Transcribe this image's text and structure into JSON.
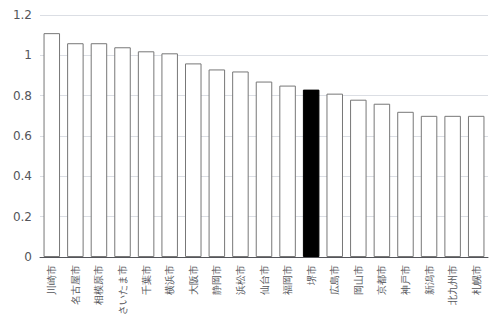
{
  "chart_data": {
    "type": "bar",
    "categories": [
      "川崎市",
      "名古屋市",
      "相模原市",
      "さいたま市",
      "千葉市",
      "横浜市",
      "大阪市",
      "静岡市",
      "浜松市",
      "仙台市",
      "福岡市",
      "堺市",
      "広島市",
      "岡山市",
      "京都市",
      "神戸市",
      "新潟市",
      "北九州市",
      "札幌市"
    ],
    "values": [
      1.11,
      1.06,
      1.06,
      1.04,
      1.02,
      1.01,
      0.96,
      0.93,
      0.92,
      0.87,
      0.85,
      0.83,
      0.81,
      0.78,
      0.76,
      0.72,
      0.7,
      0.7,
      0.7
    ],
    "colors": [
      "#ffffff",
      "#ffffff",
      "#ffffff",
      "#ffffff",
      "#ffffff",
      "#ffffff",
      "#ffffff",
      "#ffffff",
      "#ffffff",
      "#ffffff",
      "#ffffff",
      "#000000",
      "#ffffff",
      "#ffffff",
      "#ffffff",
      "#ffffff",
      "#ffffff",
      "#ffffff",
      "#ffffff"
    ],
    "ylim": [
      0,
      1.2
    ],
    "yticks": [
      0,
      0.2,
      0.4,
      0.6,
      0.8,
      1,
      1.2
    ],
    "grid": true
  }
}
